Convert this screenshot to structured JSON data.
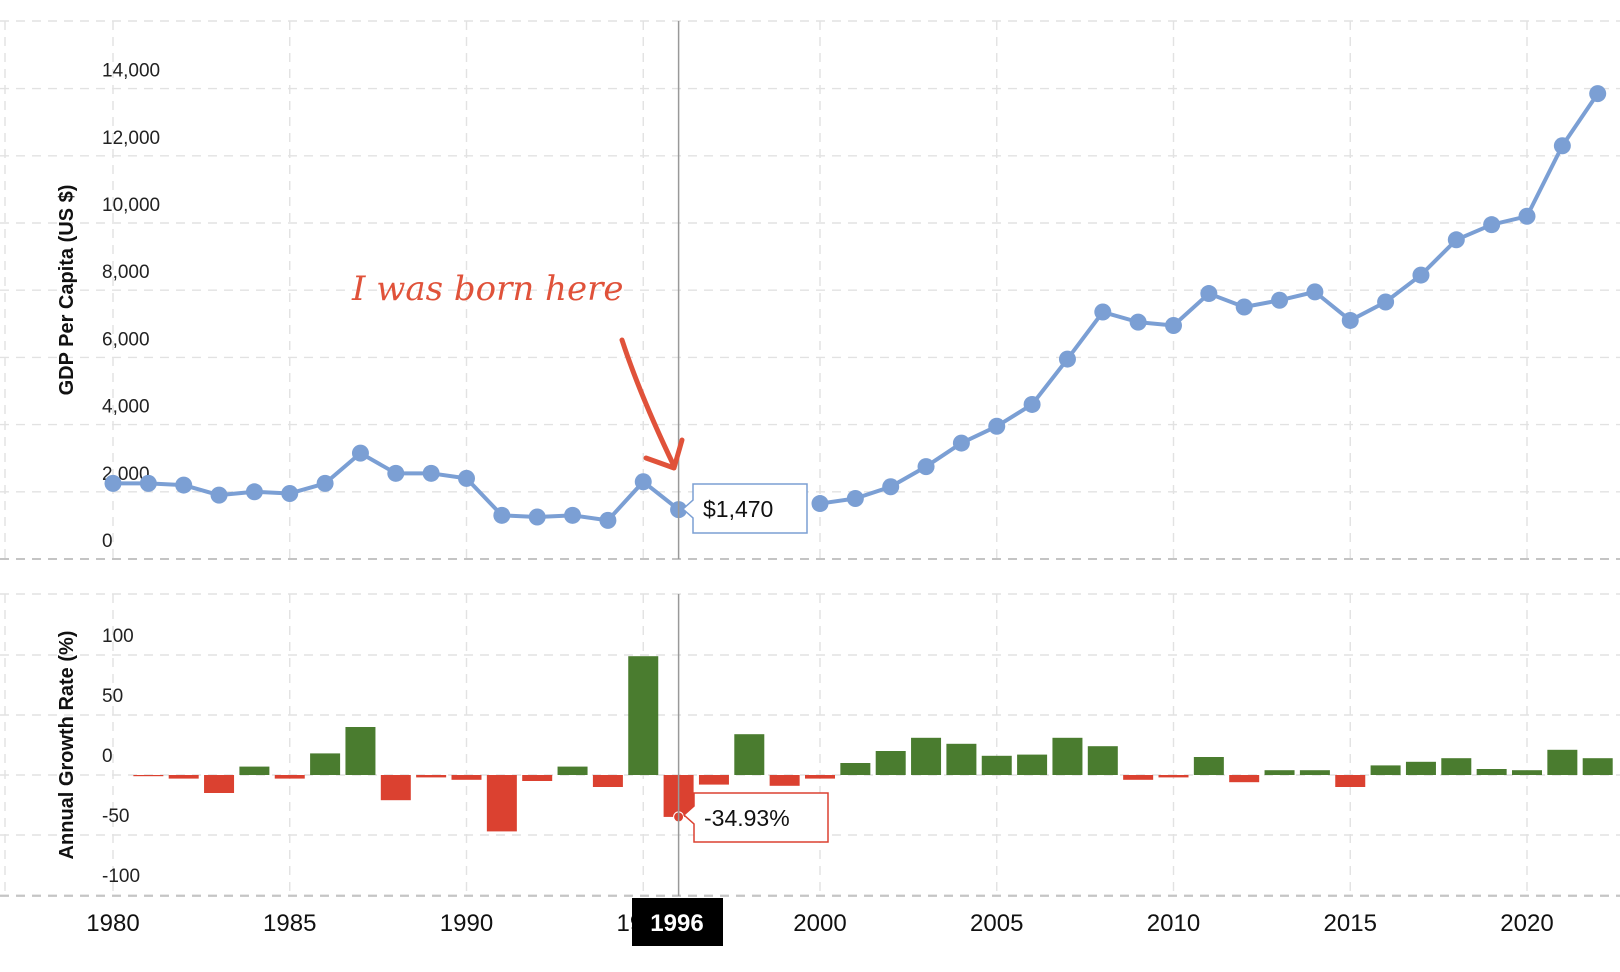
{
  "chart_data": [
    {
      "type": "line",
      "ylabel": "GDP Per Capita (US $)",
      "ylim": [
        0,
        16000
      ],
      "yticks": [
        0,
        2000,
        4000,
        6000,
        8000,
        10000,
        12000,
        14000
      ],
      "ytick_labels": [
        "0",
        "2,000",
        "4,000",
        "6,000",
        "8,000",
        "10,000",
        "12,000",
        "14,000"
      ],
      "grid": true,
      "color": "#7b9fd4",
      "x": [
        1980,
        1981,
        1982,
        1983,
        1984,
        1985,
        1986,
        1987,
        1988,
        1989,
        1990,
        1991,
        1992,
        1993,
        1994,
        1995,
        1996,
        1997,
        1998,
        1999,
        2000,
        2001,
        2002,
        2003,
        2004,
        2005,
        2006,
        2007,
        2008,
        2009,
        2010,
        2011,
        2012,
        2013,
        2014,
        2015,
        2016,
        2017,
        2018,
        2019,
        2020,
        2021,
        2022
      ],
      "values": [
        2250,
        2250,
        2200,
        1900,
        2000,
        1950,
        2250,
        3150,
        2550,
        2550,
        2400,
        1300,
        1250,
        1300,
        1150,
        2300,
        1470,
        null,
        null,
        null,
        1650,
        1800,
        2150,
        2750,
        3450,
        3950,
        4600,
        5950,
        7350,
        7050,
        6950,
        7900,
        7500,
        7700,
        7950,
        7100,
        7650,
        8450,
        9500,
        9950,
        10200,
        12300,
        13850
      ],
      "tooltip": "$1,470",
      "annotation": "I was born here"
    },
    {
      "type": "bar",
      "ylabel": "Annual Growth Rate (%)",
      "ylim": [
        -100,
        100
      ],
      "yticks": [
        -100,
        -50,
        0,
        50,
        100
      ],
      "ytick_labels": [
        "-100",
        "-50",
        "0",
        "50",
        "100"
      ],
      "grid": true,
      "positive_color": "#4a7c2f",
      "negative_color": "#db4130",
      "x": [
        1981,
        1982,
        1983,
        1984,
        1985,
        1986,
        1987,
        1988,
        1989,
        1990,
        1991,
        1992,
        1993,
        1994,
        1995,
        1996,
        1997,
        1998,
        1999,
        2000,
        2001,
        2002,
        2003,
        2004,
        2005,
        2006,
        2007,
        2008,
        2009,
        2010,
        2011,
        2012,
        2013,
        2014,
        2015,
        2016,
        2017,
        2018,
        2019,
        2020,
        2021,
        2022
      ],
      "values": [
        -1,
        -3,
        -15,
        7,
        -3,
        18,
        40,
        -21,
        -2,
        -4,
        -47,
        -5,
        7,
        -10,
        99,
        -34.93,
        -8,
        34,
        -9,
        -3,
        10,
        20,
        31,
        26,
        16,
        17,
        31,
        24,
        -4,
        -2,
        15,
        -6,
        4,
        4,
        -10,
        8,
        11,
        14,
        5,
        4,
        21,
        14
      ],
      "tooltip": "-34.93%"
    }
  ],
  "x_axis": {
    "ticks": [
      1980,
      1985,
      1990,
      1995,
      2000,
      2005,
      2010,
      2015,
      2020
    ],
    "tick_labels": [
      "1980",
      "1985",
      "1990",
      "1995",
      "2000",
      "2005",
      "2010",
      "2015",
      "2020"
    ],
    "crosshair_label": "1996"
  }
}
